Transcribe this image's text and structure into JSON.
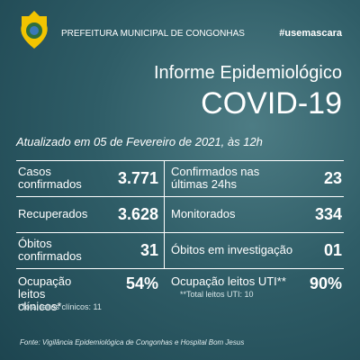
{
  "header": {
    "title": "PREFEITURA MUNICIPAL DE CONGONHAS",
    "hashtag": "#usemascara"
  },
  "title": {
    "subtitle": "Informe Epidemiológico",
    "main": "COVID-19"
  },
  "updated": "Atualizado em 05 de Fevereiro de 2021, às 12h",
  "cells": [
    {
      "label": "Casos confirmados",
      "value": "3.771"
    },
    {
      "label": "Confirmados nas últimas 24hs",
      "value": "23"
    },
    {
      "label": "Recuperados",
      "value": "3.628"
    },
    {
      "label": "Monitorados",
      "value": "334"
    },
    {
      "label": "Óbitos confirmados",
      "value": "31"
    },
    {
      "label": "Óbitos em investigação",
      "value": "01"
    },
    {
      "label": "Ocupação leitos clínicos*",
      "value": "54%",
      "note": "*Total leitos clínicos: 11"
    },
    {
      "label": "Ocupação leitos UTI**",
      "value": "90%",
      "note": "**Total leitos UTI: 10"
    }
  ],
  "footer": {
    "source": "Fonte: Vigilância Epidemiológica de Congonhas e Hospital Bom Jesus"
  }
}
